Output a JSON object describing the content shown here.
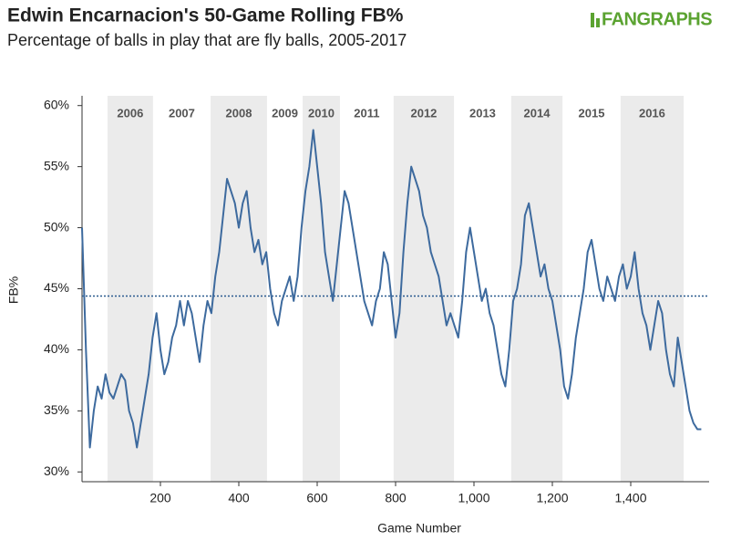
{
  "chart_data": {
    "type": "line",
    "title": "Edwin Encarnacion's 50-Game Rolling FB%",
    "subtitle": "Percentage of balls in play that are fly balls, 2005-2017",
    "logo": "FANGRAPHS",
    "x_label": "Game Number",
    "y_label": "FB%",
    "xlim": [
      0,
      1600
    ],
    "ylim": [
      29.2,
      60.8
    ],
    "xticks": [
      200,
      400,
      600,
      800,
      {
        "value": 1000,
        "label": "1,000"
      },
      {
        "value": 1200,
        "label": "1,200"
      },
      {
        "value": 1400,
        "label": "1,400"
      }
    ],
    "yticks": [
      {
        "value": 30,
        "label": "30%"
      },
      {
        "value": 35,
        "label": "35%"
      },
      {
        "value": 40,
        "label": "40%"
      },
      {
        "value": 45,
        "label": "45%"
      },
      {
        "value": 50,
        "label": "50%"
      },
      {
        "value": 55,
        "label": "55%"
      },
      {
        "value": 60,
        "label": "60%"
      }
    ],
    "reference_line": 44.4,
    "seasons": [
      {
        "label": "2006",
        "start": 65,
        "end": 181,
        "shaded": true
      },
      {
        "label": "2007",
        "start": 182,
        "end": 327,
        "shaded": false
      },
      {
        "label": "2008",
        "start": 328,
        "end": 472,
        "shaded": true
      },
      {
        "label": "2009",
        "start": 473,
        "end": 562,
        "shaded": false
      },
      {
        "label": "2010",
        "start": 563,
        "end": 658,
        "shaded": true
      },
      {
        "label": "2011",
        "start": 659,
        "end": 794,
        "shaded": false
      },
      {
        "label": "2012",
        "start": 795,
        "end": 949,
        "shaded": true
      },
      {
        "label": "2013",
        "start": 950,
        "end": 1094,
        "shaded": false
      },
      {
        "label": "2014",
        "start": 1095,
        "end": 1226,
        "shaded": true
      },
      {
        "label": "2015",
        "start": 1227,
        "end": 1373,
        "shaded": false
      },
      {
        "label": "2016",
        "start": 1374,
        "end": 1535,
        "shaded": true
      }
    ],
    "x": [
      0,
      10,
      20,
      30,
      40,
      50,
      60,
      70,
      80,
      90,
      100,
      110,
      120,
      130,
      140,
      150,
      160,
      170,
      180,
      190,
      200,
      210,
      220,
      230,
      240,
      250,
      260,
      270,
      280,
      290,
      300,
      310,
      320,
      330,
      340,
      350,
      360,
      370,
      380,
      390,
      400,
      410,
      420,
      430,
      440,
      450,
      460,
      470,
      480,
      490,
      500,
      510,
      520,
      530,
      540,
      550,
      560,
      570,
      580,
      590,
      600,
      610,
      620,
      630,
      640,
      650,
      660,
      670,
      680,
      690,
      700,
      710,
      720,
      730,
      740,
      750,
      760,
      770,
      780,
      790,
      800,
      810,
      820,
      830,
      840,
      850,
      860,
      870,
      880,
      890,
      900,
      910,
      920,
      930,
      940,
      950,
      960,
      970,
      980,
      990,
      1000,
      1010,
      1020,
      1030,
      1040,
      1050,
      1060,
      1070,
      1080,
      1090,
      1100,
      1110,
      1120,
      1130,
      1140,
      1150,
      1160,
      1170,
      1180,
      1190,
      1200,
      1210,
      1220,
      1230,
      1240,
      1250,
      1260,
      1270,
      1280,
      1290,
      1300,
      1310,
      1320,
      1330,
      1340,
      1350,
      1360,
      1370,
      1380,
      1390,
      1400,
      1410,
      1420,
      1430,
      1440,
      1450,
      1460,
      1470,
      1480,
      1490,
      1500,
      1510,
      1520,
      1530,
      1540,
      1550,
      1560,
      1570,
      1580
    ],
    "series": [
      {
        "name": "FB%",
        "color": "#3d6a9e",
        "values": [
          50,
          40,
          32,
          35,
          37,
          36,
          38,
          36.5,
          36,
          37,
          38,
          37.5,
          35,
          34,
          32,
          34,
          36,
          38,
          41,
          43,
          40,
          38,
          39,
          41,
          42,
          44,
          42,
          44,
          43,
          41,
          39,
          42,
          44,
          43,
          46,
          48,
          51,
          54,
          53,
          52,
          50,
          52,
          53,
          50,
          48,
          49,
          47,
          48,
          45,
          43,
          42,
          44,
          45,
          46,
          44,
          46,
          50,
          53,
          55,
          58,
          55,
          52,
          48,
          46,
          44,
          47,
          50,
          53,
          52,
          50,
          48,
          46,
          44,
          43,
          42,
          44,
          45,
          48,
          47,
          44,
          41,
          43,
          48,
          52,
          55,
          54,
          53,
          51,
          50,
          48,
          47,
          46,
          44,
          42,
          43,
          42,
          41,
          44,
          48,
          50,
          48,
          46,
          44,
          45,
          43,
          42,
          40,
          38,
          37,
          40,
          44,
          45,
          47,
          51,
          52,
          50,
          48,
          46,
          47,
          45,
          44,
          42,
          40,
          37,
          36,
          38,
          41,
          43,
          45,
          48,
          49,
          47,
          45,
          44,
          46,
          45,
          44,
          46,
          47,
          45,
          46,
          48,
          45,
          43,
          42,
          40,
          42,
          44,
          43,
          40,
          38,
          37,
          41,
          39,
          37,
          35,
          34,
          33.5,
          33.5
        ]
      }
    ]
  }
}
